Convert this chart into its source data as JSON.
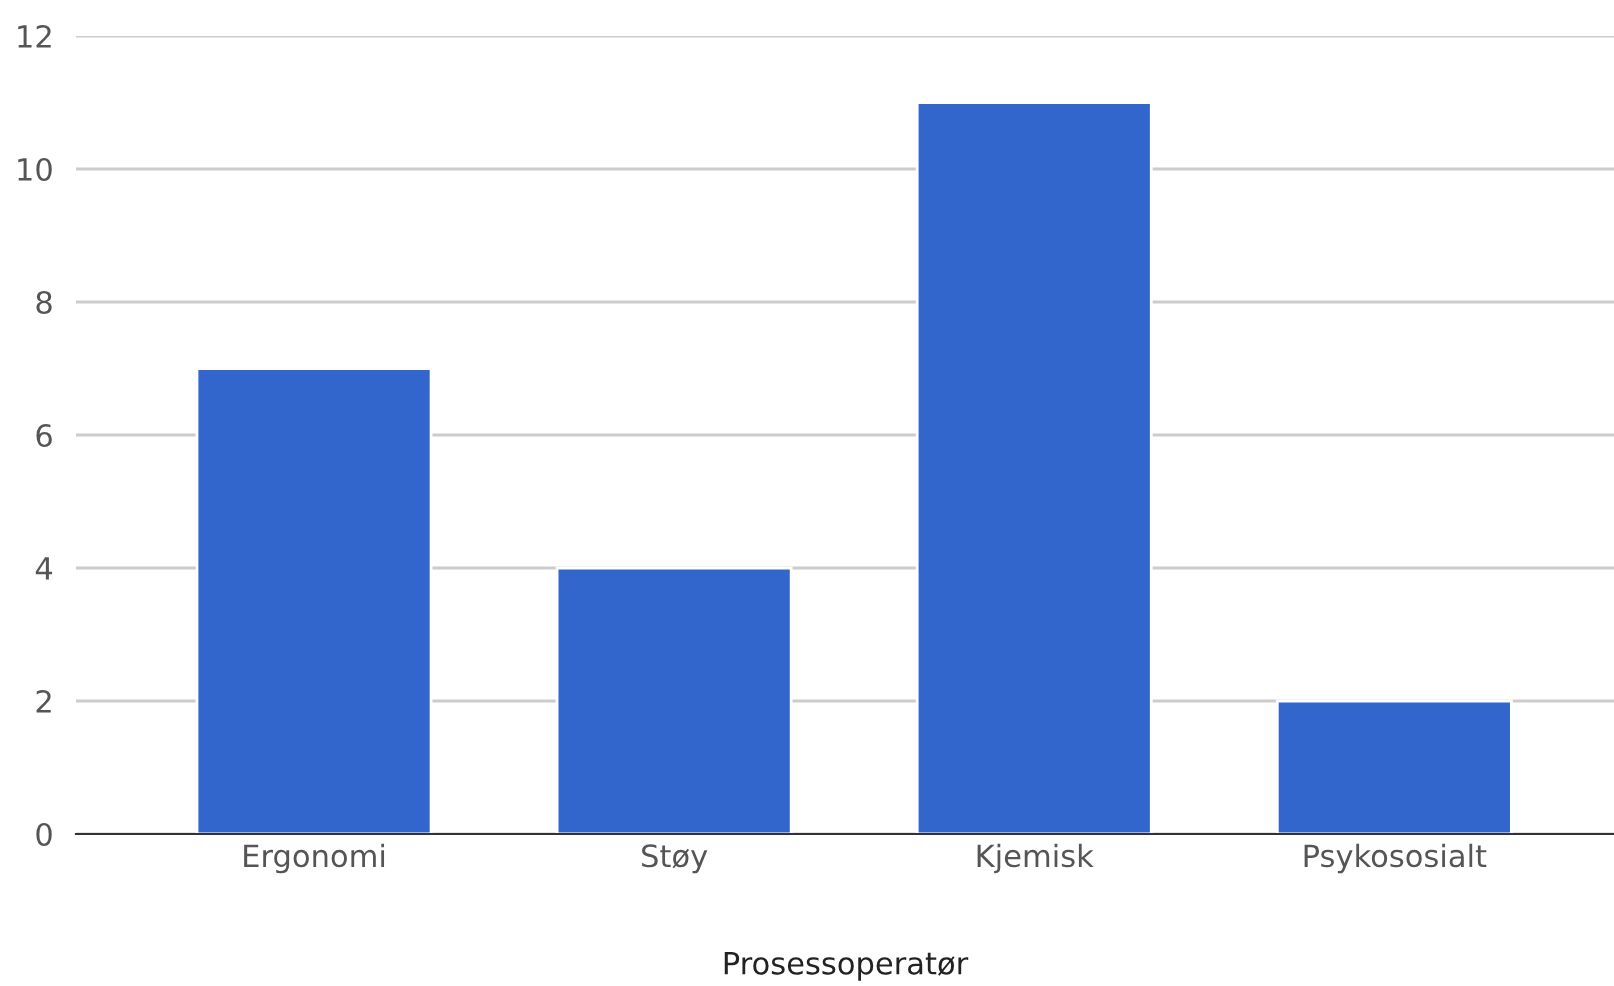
{
  "chart_data": {
    "type": "bar",
    "xlabel": "Prosessoperatør",
    "categories": [
      "Ergonomi",
      "Støy",
      "Kjemisk",
      "Psykososialt"
    ],
    "values": [
      7,
      4,
      11,
      2
    ],
    "color": "#3366cc",
    "ylim": [
      0,
      12
    ],
    "yticks": [
      0,
      2,
      4,
      6,
      8,
      10,
      12
    ],
    "grid": "y",
    "legend": false
  }
}
